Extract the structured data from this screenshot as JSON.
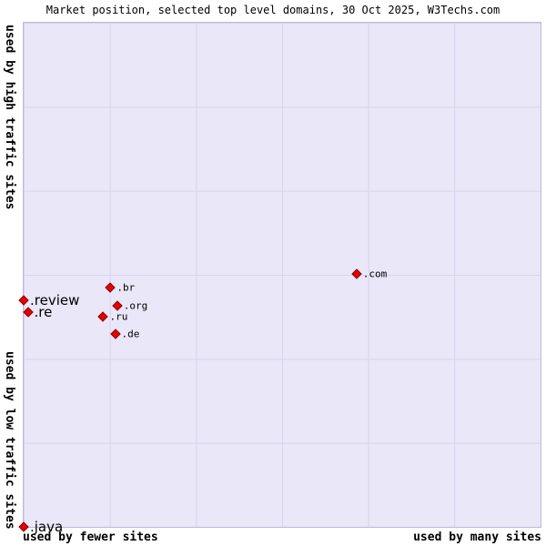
{
  "chart_data": {
    "type": "scatter",
    "title": "Market position, selected top level domains, 30 Oct 2025, W3Techs.com",
    "x_axis": {
      "left_label": "used by fewer sites",
      "right_label": "used by many sites"
    },
    "y_axis": {
      "top_label": "used by high traffic sites",
      "bottom_label": "used by low traffic sites"
    },
    "marker_shape": "diamond",
    "grid": true,
    "axis_ranges": "unlabeled relative scale, x and y given as percent of plot area (0-100)",
    "points": [
      {
        "label": ".com",
        "x": 64.4,
        "y": 50.2,
        "emphasis": false
      },
      {
        "label": ".br",
        "x": 16.8,
        "y": 47.5,
        "emphasis": false
      },
      {
        "label": ".org",
        "x": 18.1,
        "y": 43.9,
        "emphasis": false
      },
      {
        "label": ".ru",
        "x": 15.4,
        "y": 41.7,
        "emphasis": false
      },
      {
        "label": ".de",
        "x": 17.7,
        "y": 38.3,
        "emphasis": false
      },
      {
        "label": ".review",
        "x": 0.0,
        "y": 45.0,
        "emphasis": true
      },
      {
        "label": ".re",
        "x": 0.8,
        "y": 42.6,
        "emphasis": true
      },
      {
        "label": ".java",
        "x": 0.0,
        "y": 0.0,
        "emphasis": true
      }
    ]
  },
  "colors": {
    "plot_bg": "#e9e7f8",
    "grid": "#d7d3ee",
    "plot_border": "#bdb8dc",
    "marker": "#e60000",
    "marker_border": "#8a0000"
  }
}
